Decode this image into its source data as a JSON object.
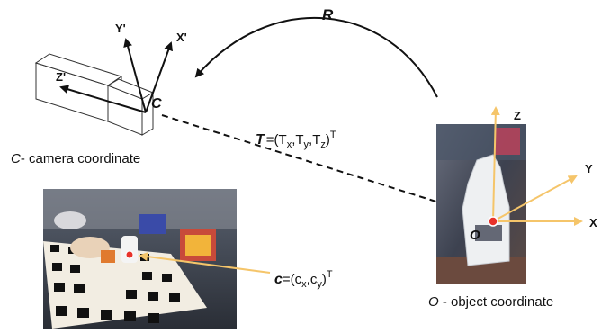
{
  "labels": {
    "rotation": "R",
    "camera_origin": "C",
    "camera_axis_x": "X'",
    "camera_axis_y": "Y'",
    "camera_axis_z": "Z'",
    "camera_caption_letter": "C",
    "camera_caption_rest": "- camera coordinate",
    "translation_symbol": "T",
    "translation_open": "=(T",
    "translation_sub_x": "x",
    "translation_sub_y": "y",
    "translation_sub_z": "z",
    "translation_close": ")",
    "translation_comma": ",",
    "translation_t_letter": "T",
    "transpose": "T",
    "object_origin": "O",
    "object_axis_x": "X",
    "object_axis_y": "Y",
    "object_axis_z": "Z",
    "object_caption_letter": "O",
    "object_caption_rest": " - object coordinate",
    "projection_symbol": "c",
    "projection_open": "=(c",
    "projection_sub_x": "x",
    "projection_sub_y": "y",
    "projection_comma": ",",
    "projection_c_letter": "c",
    "projection_close": ")"
  },
  "colors": {
    "line": "#111111",
    "axis_arrow": "#f5c56a",
    "origin_marker": "#e8322a"
  }
}
